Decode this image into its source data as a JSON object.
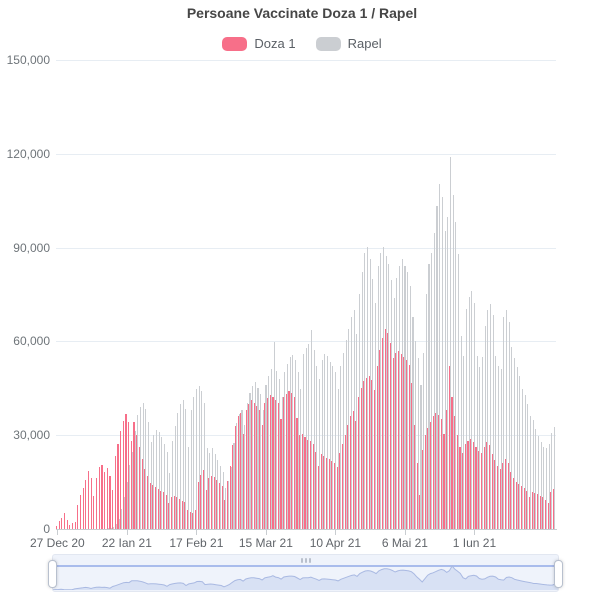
{
  "title": "Persoane Vaccinate Doza 1 / Rapel",
  "legend": {
    "items": [
      {
        "label": "Doza 1",
        "color": "#f76f89"
      },
      {
        "label": "Rapel",
        "color": "#cbced2"
      }
    ]
  },
  "colors": {
    "doza1": "#f76f89",
    "rapel": "#cbced2",
    "gridline": "#e7edf3",
    "axis": "#c9cdd1",
    "slider_area_fill": "#d8e1f4",
    "slider_area_line": "#a9b9e2"
  },
  "chart_data": {
    "type": "bar",
    "title": "Persoane Vaccinate Doza 1 / Rapel",
    "xlabel": "",
    "ylabel": "",
    "ylim": [
      0,
      150000
    ],
    "y_ticks": [
      0,
      30000,
      60000,
      90000,
      120000,
      150000
    ],
    "grid": true,
    "legend_position": "top",
    "x_start_label": "27 Dec 20",
    "x_ticks": [
      {
        "label": "27 Dec 20",
        "day": 0
      },
      {
        "label": "22 Ian 21",
        "day": 26
      },
      {
        "label": "17 Feb 21",
        "day": 52
      },
      {
        "label": "15 Mar 21",
        "day": 78
      },
      {
        "label": "10 Apr 21",
        "day": 104
      },
      {
        "label": "6 Mai 21",
        "day": 130
      },
      {
        "label": "1 Iun 21",
        "day": 156
      }
    ],
    "series": [
      {
        "name": "Doza 1",
        "color": "#f76f89",
        "values": [
          850,
          2600,
          3400,
          5200,
          2900,
          1300,
          1900,
          2400,
          7600,
          10800,
          13200,
          15600,
          18700,
          16400,
          10600,
          16300,
          19800,
          20600,
          18400,
          19600,
          17100,
          12600,
          23400,
          27200,
          31400,
          34600,
          36800,
          34100,
          28300,
          34200,
          30100,
          26400,
          22300,
          19200,
          17100,
          14800,
          14100,
          13400,
          12800,
          12300,
          11700,
          11000,
          8200,
          10300,
          10600,
          10100,
          9600,
          9100,
          8600,
          6200,
          5600,
          5100,
          6100,
          14900,
          17300,
          18800,
          12400,
          16200,
          17100,
          16500,
          15600,
          14700,
          13900,
          9300,
          15400,
          20300,
          26800,
          32900,
          36200,
          37100,
          30400,
          38200,
          40100,
          41300,
          40200,
          39300,
          38100,
          33200,
          40400,
          41800,
          42900,
          42300,
          41400,
          40200,
          35300,
          42100,
          43200,
          44100,
          43400,
          42200,
          35600,
          30200,
          30400,
          29300,
          28600,
          28100,
          27200,
          24800,
          20300,
          24100,
          23400,
          22800,
          22300,
          21700,
          21100,
          19800,
          24300,
          27100,
          30200,
          33400,
          36100,
          37800,
          34600,
          42200,
          45100,
          47300,
          48400,
          48900,
          47800,
          44600,
          52300,
          57400,
          61200,
          64100,
          62800,
          59600,
          54800,
          56200,
          56800,
          55900,
          55100,
          54200,
          52600,
          46800,
          33400,
          21200,
          10900,
          25300,
          30200,
          32400,
          34100,
          36200,
          37100,
          36400,
          35200,
          30400,
          38200,
          52300,
          42100,
          36300,
          30200,
          26100,
          24200,
          27100,
          28200,
          28800,
          27900,
          26300,
          25100,
          24200,
          26100,
          27800,
          26900,
          24100,
          22100,
          20300,
          19200,
          21100,
          22300,
          21200,
          18300,
          16200,
          15100,
          14300,
          13800,
          13100,
          12200,
          10400,
          11800,
          11600,
          11100,
          10700,
          10100,
          9400,
          8300,
          11900,
          12800
        ]
      },
      {
        "name": "Rapel",
        "color": "#cbced2",
        "values": [
          0,
          0,
          0,
          0,
          0,
          0,
          0,
          0,
          0,
          0,
          0,
          0,
          0,
          0,
          0,
          0,
          0,
          0,
          100,
          250,
          350,
          500,
          1600,
          3200,
          6400,
          10300,
          15200,
          20400,
          24800,
          31200,
          36400,
          39100,
          40200,
          38400,
          34200,
          27800,
          30100,
          31800,
          30900,
          29400,
          27200,
          24800,
          17900,
          28300,
          33100,
          37200,
          40100,
          41200,
          38300,
          26100,
          38200,
          42100,
          44800,
          45600,
          44100,
          40200,
          25900,
          24300,
          25800,
          23900,
          22100,
          20200,
          18300,
          13200,
          15300,
          19800,
          27600,
          33800,
          36900,
          38200,
          33400,
          40200,
          43600,
          45900,
          47100,
          45200,
          43100,
          38200,
          46200,
          48800,
          51200,
          59800,
          50400,
          48100,
          42300,
          50300,
          52800,
          54900,
          55800,
          54200,
          50100,
          44800,
          55900,
          57800,
          59200,
          63800,
          57200,
          52300,
          47900,
          54200,
          56100,
          55300,
          53400,
          52100,
          50200,
          44900,
          52300,
          56200,
          60400,
          64100,
          67800,
          70200,
          62400,
          75300,
          82100,
          88400,
          90200,
          86300,
          80100,
          72400,
          84200,
          88300,
          90100,
          87400,
          84800,
          79600,
          73800,
          80200,
          84100,
          86300,
          84200,
          82100,
          77800,
          67900,
          60200,
          54800,
          46100,
          56300,
          75200,
          84800,
          88300,
          94800,
          103200,
          110400,
          106200,
          95300,
          99800,
          118900,
          106800,
          98300,
          88100,
          61800,
          55200,
          70300,
          74100,
          76200,
          72300,
          55400,
          51800,
          55100,
          64800,
          70200,
          72100,
          68300,
          55200,
          52300,
          51100,
          67800,
          70100,
          66200,
          58300,
          54800,
          51900,
          48800,
          44900,
          42800,
          40100,
          36200,
          34800,
          32100,
          29900,
          27800,
          26300,
          25800,
          27200,
          30800,
          32600
        ]
      }
    ]
  }
}
